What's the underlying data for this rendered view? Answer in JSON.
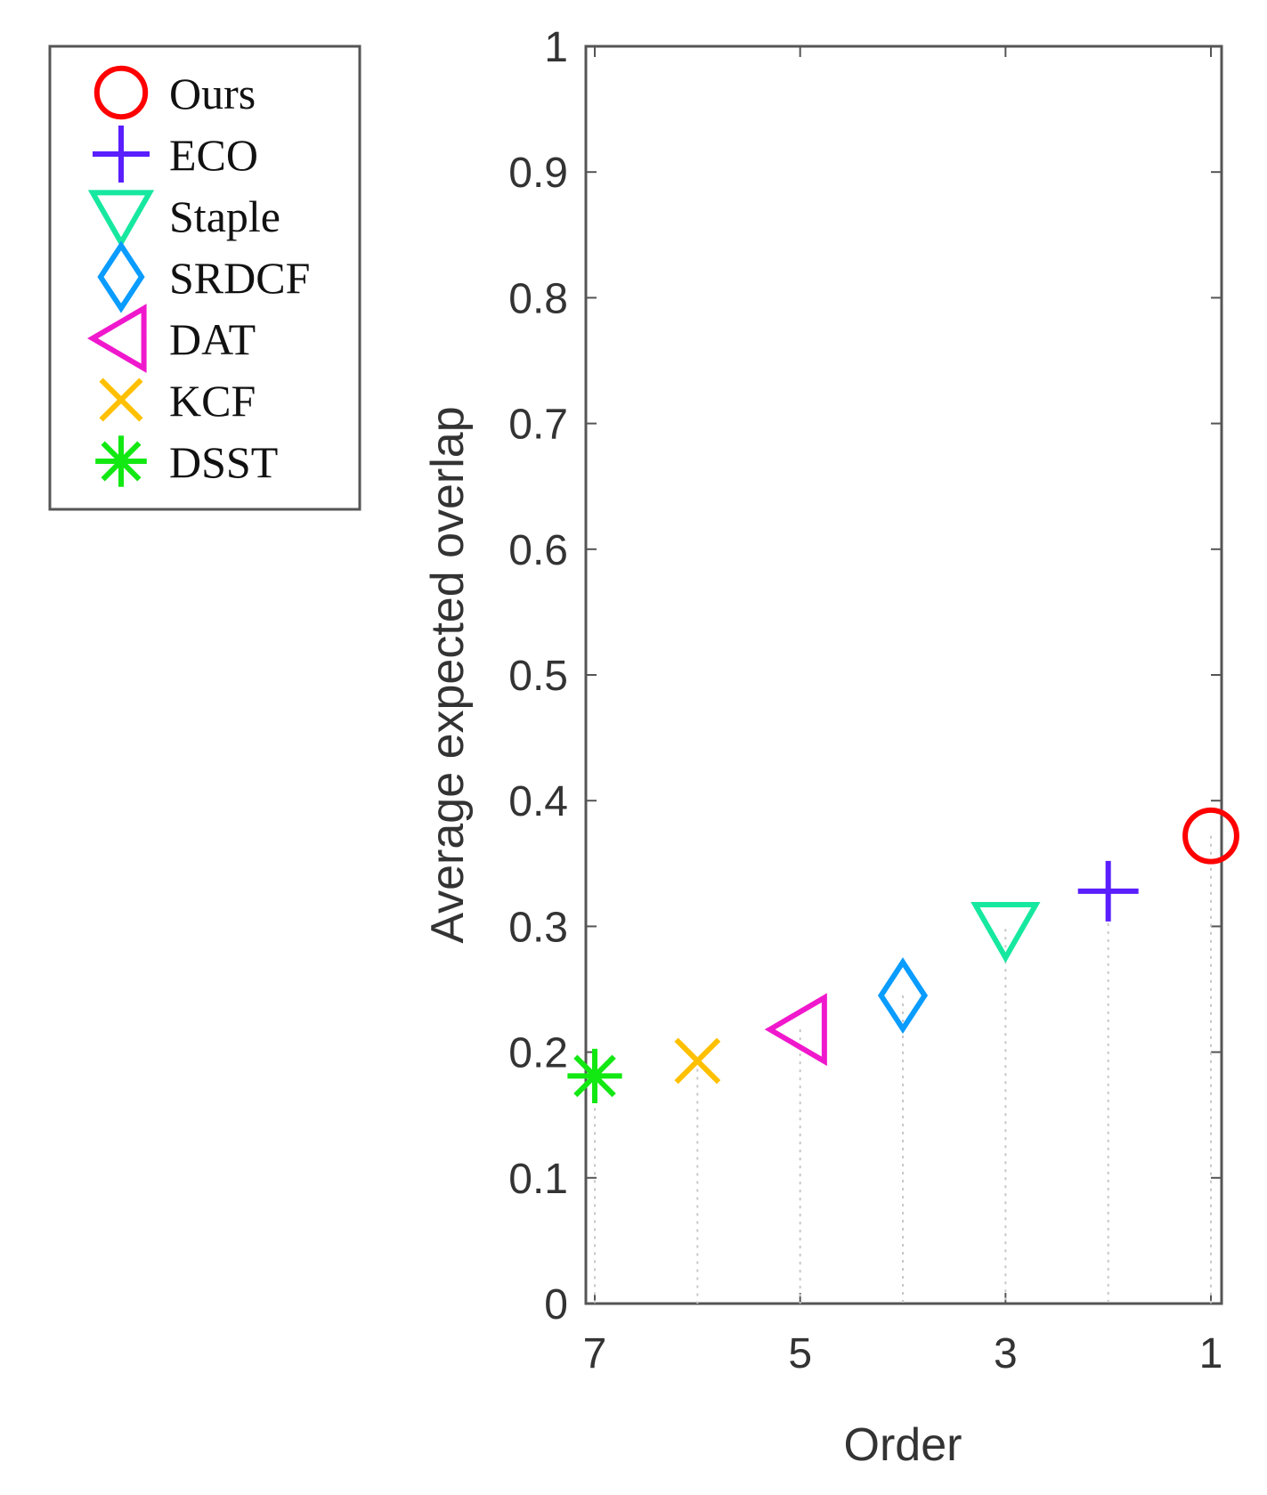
{
  "chart_data": {
    "type": "scatter",
    "title": "",
    "xlabel": "Order",
    "ylabel": "Average expected overlap",
    "xlim": [
      1,
      7
    ],
    "x_reversed": true,
    "ylim": [
      0,
      1
    ],
    "xticks": [
      7,
      5,
      3,
      1
    ],
    "yticks": [
      0,
      0.1,
      0.2,
      0.3,
      0.4,
      0.5,
      0.6,
      0.7,
      0.8,
      0.9,
      1
    ],
    "ytick_labels": [
      "0",
      "0.1",
      "0.2",
      "0.3",
      "0.4",
      "0.5",
      "0.6",
      "0.7",
      "0.8",
      "0.9",
      "1"
    ],
    "xtick_labels": [
      "7",
      "5",
      "3",
      "1"
    ],
    "grid": false,
    "stems": "dotted vertical lines from each point to y = 0",
    "legend_position": "outside-top-left",
    "series": [
      {
        "name": "Ours",
        "order": 1,
        "value": 0.372,
        "marker": "circle",
        "color": "#ff0000"
      },
      {
        "name": "ECO",
        "order": 2,
        "value": 0.328,
        "marker": "plus",
        "color": "#5a1eff"
      },
      {
        "name": "Staple",
        "order": 3,
        "value": 0.298,
        "marker": "triangle-down",
        "color": "#17e8a0"
      },
      {
        "name": "SRDCF",
        "order": 4,
        "value": 0.245,
        "marker": "diamond",
        "color": "#0a9cff"
      },
      {
        "name": "DAT",
        "order": 5,
        "value": 0.218,
        "marker": "triangle-left",
        "color": "#f018cc"
      },
      {
        "name": "KCF",
        "order": 6,
        "value": 0.193,
        "marker": "x",
        "color": "#ffc000"
      },
      {
        "name": "DSST",
        "order": 7,
        "value": 0.181,
        "marker": "asterisk",
        "color": "#12e812"
      }
    ]
  }
}
